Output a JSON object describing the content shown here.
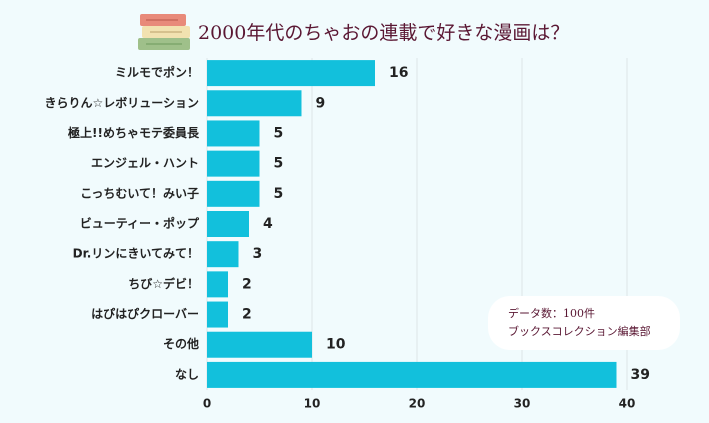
{
  "chart_data": {
    "type": "bar",
    "orientation": "horizontal",
    "title": "2000年代のちゃおの連載で好きな漫画は？",
    "categories": [
      "ミルモでポン！",
      "きらりん☆レボリューション",
      "極上!!めちゃモテ委員長",
      "エンジェル・ハント",
      "こっちむいて！みい子",
      "ビューティー・ポップ",
      "Dr.リンにきいてみて！",
      "ちび☆デビ！",
      "はぴはぴクローバー",
      "その他",
      "なし"
    ],
    "values": [
      16,
      9,
      5,
      5,
      5,
      4,
      3,
      2,
      2,
      10,
      39
    ],
    "color": "#12c0dc",
    "xlim": [
      0,
      40
    ],
    "xticks": [
      0,
      10,
      20,
      30,
      40
    ],
    "grid": true,
    "annotations": [
      "データ数：100件",
      "ブックスコレクション編集部"
    ]
  }
}
